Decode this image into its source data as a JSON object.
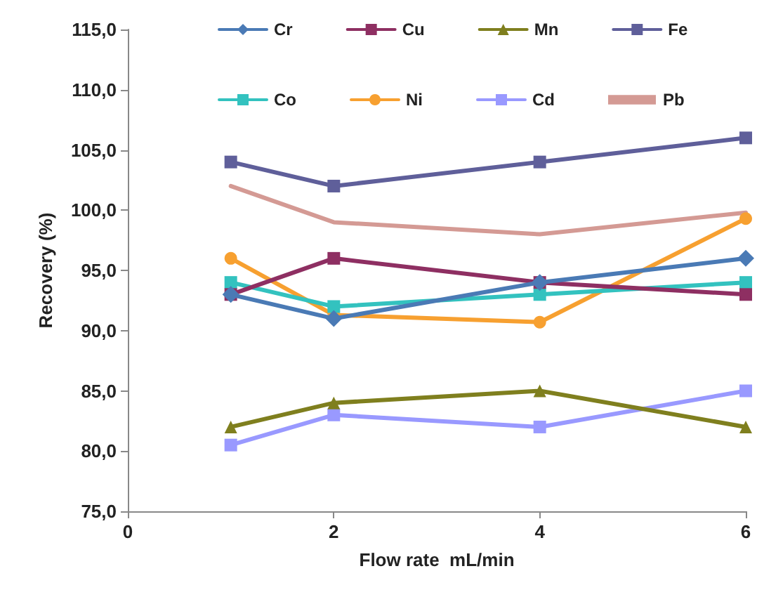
{
  "chart_data": {
    "type": "line",
    "xlabel": "Flow rate  mL/min",
    "ylabel": "Recovery (%)",
    "x": [
      1,
      2,
      4,
      6
    ],
    "series": [
      {
        "name": "Cr",
        "color": "#4a7ab5",
        "marker": "diamond",
        "values": [
          93,
          91,
          94,
          96
        ]
      },
      {
        "name": "Cu",
        "color": "#8e2f62",
        "marker": "square",
        "values": [
          93,
          96,
          94,
          93
        ]
      },
      {
        "name": "Mn",
        "color": "#7f7f1e",
        "marker": "triangle",
        "values": [
          82,
          84,
          85,
          82
        ]
      },
      {
        "name": "Fe",
        "color": "#5f5f9a",
        "marker": "square",
        "values": [
          104,
          102,
          104,
          106
        ]
      },
      {
        "name": "Co",
        "color": "#33c2bf",
        "marker": "square",
        "values": [
          94,
          92,
          93,
          94
        ]
      },
      {
        "name": "Ni",
        "color": "#f7a030",
        "marker": "circle",
        "values": [
          96,
          91.3,
          90.7,
          99.3
        ]
      },
      {
        "name": "Cd",
        "color": "#9999ff",
        "marker": "square",
        "values": [
          80.5,
          83,
          82,
          85
        ]
      },
      {
        "name": "Pb",
        "color": "#d49a94",
        "marker": "none",
        "values": [
          102,
          99,
          98,
          99.8
        ]
      }
    ],
    "xlim": [
      0,
      6
    ],
    "xticks": [
      0,
      2,
      4,
      6
    ],
    "ylim": [
      75,
      115
    ],
    "yticks": [
      {
        "value": 75,
        "label": "75,0"
      },
      {
        "value": 80,
        "label": "80,0"
      },
      {
        "value": 85,
        "label": "85,0"
      },
      {
        "value": 90,
        "label": "90,0"
      },
      {
        "value": 95,
        "label": "95,0"
      },
      {
        "value": 100,
        "label": "100,0"
      },
      {
        "value": 105,
        "label": "105,0"
      },
      {
        "value": 110,
        "label": "110,0"
      },
      {
        "value": 115,
        "label": "115,0"
      }
    ],
    "grid": false,
    "legend": "top",
    "line_style": "solid"
  }
}
